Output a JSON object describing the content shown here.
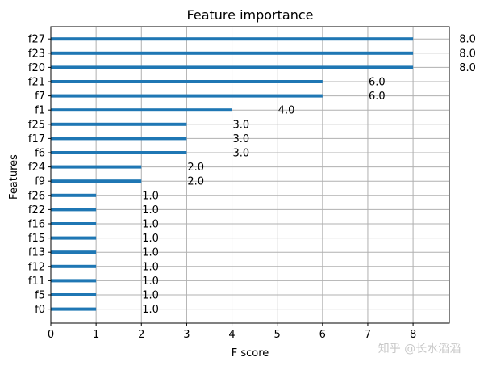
{
  "chart_data": {
    "type": "bar",
    "orientation": "horizontal",
    "title": "Feature importance",
    "xlabel": "F score",
    "ylabel": "Features",
    "xlim": [
      0,
      8.8
    ],
    "xticks": [
      0,
      1,
      2,
      3,
      4,
      5,
      6,
      7,
      8
    ],
    "grid": true,
    "bar_color": "#1f77b4",
    "categories": [
      "f0",
      "f5",
      "f11",
      "f12",
      "f13",
      "f15",
      "f16",
      "f22",
      "f26",
      "f9",
      "f24",
      "f6",
      "f17",
      "f25",
      "f1",
      "f7",
      "f21",
      "f20",
      "f23",
      "f27"
    ],
    "values": [
      1,
      1,
      1,
      1,
      1,
      1,
      1,
      1,
      1,
      2,
      2,
      3,
      3,
      3,
      4,
      6,
      6,
      8,
      8,
      8
    ],
    "data_labels": [
      "1.0",
      "1.0",
      "1.0",
      "1.0",
      "1.0",
      "1.0",
      "1.0",
      "1.0",
      "1.0",
      "2.0",
      "2.0",
      "3.0",
      "3.0",
      "3.0",
      "4.0",
      "6.0",
      "6.0",
      "8.0",
      "8.0",
      "8.0"
    ]
  },
  "watermark": {
    "text": "知乎 @长水滔滔"
  }
}
